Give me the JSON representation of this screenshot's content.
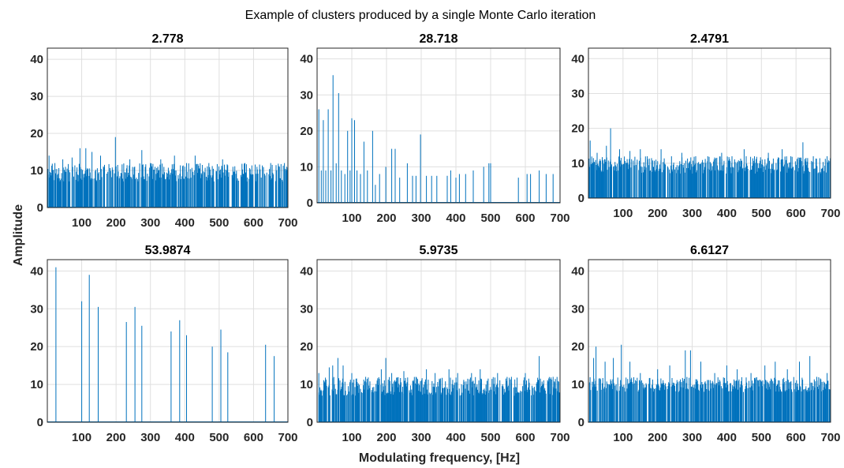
{
  "figure": {
    "title": "Example of clusters produced by a single Monte Carlo iteration",
    "xlabel": "Modulating frequency, [Hz]",
    "ylabel": "Amplitude"
  },
  "chart_data": [
    {
      "type": "line",
      "title": "2.778",
      "xlim": [
        0,
        700
      ],
      "ylim": [
        0,
        43
      ],
      "xticks": [
        100,
        200,
        300,
        400,
        500,
        600,
        700
      ],
      "yticks": [
        0,
        10,
        20,
        30,
        40
      ],
      "grid": true,
      "color": "#0072bd",
      "style": "dense",
      "x_range": [
        0,
        700
      ],
      "baseline_band": [
        7,
        12
      ],
      "peaks": [
        [
          5,
          14
        ],
        [
          22,
          12
        ],
        [
          45,
          13
        ],
        [
          72,
          13.5
        ],
        [
          95,
          16
        ],
        [
          112,
          16
        ],
        [
          130,
          15
        ],
        [
          155,
          14
        ],
        [
          198,
          19
        ],
        [
          240,
          13
        ],
        [
          275,
          15.5
        ],
        [
          300,
          12
        ],
        [
          330,
          13
        ],
        [
          370,
          14
        ],
        [
          405,
          12
        ],
        [
          430,
          14
        ],
        [
          470,
          12
        ],
        [
          510,
          13
        ],
        [
          540,
          11
        ],
        [
          575,
          12
        ],
        [
          610,
          11
        ],
        [
          650,
          12
        ],
        [
          690,
          12
        ]
      ]
    },
    {
      "type": "line",
      "title": "28.718",
      "xlim": [
        0,
        700
      ],
      "ylim": [
        0,
        43
      ],
      "xticks": [
        100,
        200,
        300,
        400,
        500,
        600,
        700
      ],
      "yticks": [
        0,
        10,
        20,
        30,
        40
      ],
      "grid": true,
      "color": "#0072bd",
      "style": "sparse",
      "x_range": [
        0,
        700
      ],
      "lines": [
        [
          5,
          26
        ],
        [
          12,
          9
        ],
        [
          18,
          23
        ],
        [
          25,
          9
        ],
        [
          32,
          26
        ],
        [
          40,
          9
        ],
        [
          46,
          35.5
        ],
        [
          55,
          11
        ],
        [
          62,
          30.5
        ],
        [
          70,
          9
        ],
        [
          80,
          8
        ],
        [
          88,
          20
        ],
        [
          95,
          9
        ],
        [
          100,
          23.5
        ],
        [
          108,
          23
        ],
        [
          115,
          9
        ],
        [
          125,
          8
        ],
        [
          135,
          17
        ],
        [
          145,
          9
        ],
        [
          160,
          20
        ],
        [
          168,
          5
        ],
        [
          180,
          8
        ],
        [
          198,
          10
        ],
        [
          215,
          15
        ],
        [
          225,
          15
        ],
        [
          238,
          7
        ],
        [
          260,
          11
        ],
        [
          275,
          7.5
        ],
        [
          285,
          7.5
        ],
        [
          298,
          19
        ],
        [
          315,
          7.5
        ],
        [
          330,
          7.5
        ],
        [
          345,
          7.5
        ],
        [
          375,
          7.5
        ],
        [
          385,
          9
        ],
        [
          400,
          7
        ],
        [
          410,
          8
        ],
        [
          428,
          8
        ],
        [
          450,
          9
        ],
        [
          480,
          10
        ],
        [
          495,
          11
        ],
        [
          500,
          11
        ],
        [
          580,
          7
        ],
        [
          605,
          8
        ],
        [
          615,
          8
        ],
        [
          640,
          9
        ],
        [
          660,
          8
        ],
        [
          680,
          8
        ],
        [
          700,
          9
        ]
      ]
    },
    {
      "type": "line",
      "title": "2.4791",
      "xlim": [
        0,
        700
      ],
      "ylim": [
        0,
        43
      ],
      "xticks": [
        100,
        200,
        300,
        400,
        500,
        600,
        700
      ],
      "yticks": [
        0,
        10,
        20,
        30,
        40
      ],
      "grid": true,
      "color": "#0072bd",
      "style": "dense",
      "x_range": [
        0,
        700
      ],
      "baseline_band": [
        7,
        12
      ],
      "peaks": [
        [
          5,
          16.5
        ],
        [
          25,
          13
        ],
        [
          52,
          15
        ],
        [
          64,
          20
        ],
        [
          90,
          14
        ],
        [
          120,
          13.5
        ],
        [
          150,
          14
        ],
        [
          170,
          12
        ],
        [
          210,
          14
        ],
        [
          240,
          12
        ],
        [
          270,
          13
        ],
        [
          310,
          12
        ],
        [
          345,
          12
        ],
        [
          385,
          13
        ],
        [
          415,
          12
        ],
        [
          450,
          14
        ],
        [
          480,
          12
        ],
        [
          520,
          13
        ],
        [
          560,
          14
        ],
        [
          585,
          12
        ],
        [
          620,
          16
        ],
        [
          650,
          12
        ],
        [
          690,
          12
        ]
      ]
    },
    {
      "type": "line",
      "title": "53.9874",
      "xlim": [
        0,
        700
      ],
      "ylim": [
        0,
        43
      ],
      "xticks": [
        100,
        200,
        300,
        400,
        500,
        600,
        700
      ],
      "yticks": [
        0,
        10,
        20,
        30,
        40
      ],
      "grid": true,
      "color": "#0072bd",
      "style": "sparse",
      "x_range": [
        0,
        700
      ],
      "lines": [
        [
          25,
          41
        ],
        [
          100,
          32
        ],
        [
          122,
          39
        ],
        [
          148,
          30.5
        ],
        [
          230,
          26.5
        ],
        [
          255,
          30.5
        ],
        [
          275,
          25.5
        ],
        [
          360,
          24
        ],
        [
          385,
          27
        ],
        [
          405,
          23
        ],
        [
          480,
          20
        ],
        [
          505,
          24.5
        ],
        [
          525,
          18.5
        ],
        [
          635,
          20.5
        ],
        [
          660,
          17.5
        ]
      ]
    },
    {
      "type": "line",
      "title": "5.9735",
      "xlim": [
        0,
        700
      ],
      "ylim": [
        0,
        43
      ],
      "xticks": [
        100,
        200,
        300,
        400,
        500,
        600,
        700
      ],
      "yticks": [
        0,
        10,
        20,
        30,
        40
      ],
      "grid": true,
      "color": "#0072bd",
      "style": "dense",
      "x_range": [
        5,
        700
      ],
      "baseline_band": [
        7,
        12
      ],
      "peaks": [
        [
          5,
          13
        ],
        [
          35,
          14.5
        ],
        [
          45,
          15
        ],
        [
          60,
          17
        ],
        [
          75,
          15
        ],
        [
          100,
          13
        ],
        [
          140,
          12
        ],
        [
          185,
          14
        ],
        [
          198,
          17
        ],
        [
          215,
          13
        ],
        [
          250,
          13.5
        ],
        [
          285,
          12
        ],
        [
          315,
          14
        ],
        [
          340,
          13
        ],
        [
          380,
          14
        ],
        [
          405,
          13
        ],
        [
          445,
          13
        ],
        [
          470,
          14
        ],
        [
          520,
          13
        ],
        [
          560,
          12
        ],
        [
          600,
          13
        ],
        [
          640,
          17.5
        ],
        [
          680,
          12
        ]
      ]
    },
    {
      "type": "line",
      "title": "6.6127",
      "xlim": [
        0,
        700
      ],
      "ylim": [
        0,
        43
      ],
      "xticks": [
        100,
        200,
        300,
        400,
        500,
        600,
        700
      ],
      "yticks": [
        0,
        10,
        20,
        30,
        40
      ],
      "grid": true,
      "color": "#0072bd",
      "style": "dense",
      "x_range": [
        0,
        700
      ],
      "baseline_band": [
        8,
        12
      ],
      "peaks": [
        [
          15,
          17
        ],
        [
          22,
          20
        ],
        [
          48,
          16
        ],
        [
          72,
          17
        ],
        [
          95,
          20.5
        ],
        [
          120,
          16
        ],
        [
          150,
          13
        ],
        [
          200,
          14
        ],
        [
          235,
          15
        ],
        [
          280,
          19
        ],
        [
          295,
          19
        ],
        [
          325,
          16
        ],
        [
          365,
          13
        ],
        [
          400,
          15
        ],
        [
          430,
          14
        ],
        [
          470,
          13
        ],
        [
          510,
          15
        ],
        [
          540,
          16
        ],
        [
          575,
          14
        ],
        [
          610,
          16
        ],
        [
          640,
          17.5
        ],
        [
          660,
          12
        ],
        [
          690,
          13
        ]
      ]
    }
  ]
}
